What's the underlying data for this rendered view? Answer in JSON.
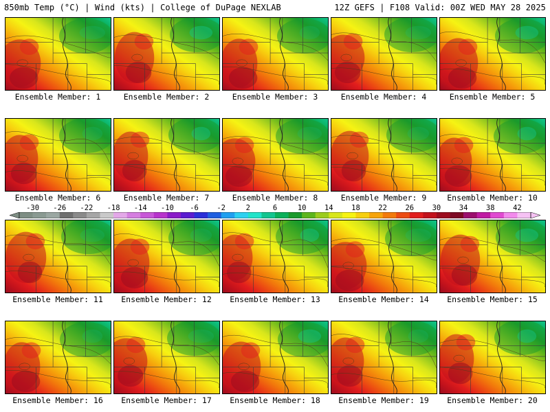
{
  "header": {
    "left": "850mb Temp (°C) | Wind (kts) | College of DuPage NEXLAB",
    "right": "12Z GEFS | F108 Valid: 00Z WED MAY 28 2025"
  },
  "colorbar": {
    "ticks": [
      "-30",
      "-26",
      "-22",
      "-18",
      "-14",
      "-10",
      "-6",
      "-2",
      "2",
      "6",
      "10",
      "14",
      "18",
      "22",
      "26",
      "30",
      "34",
      "38",
      "42"
    ],
    "colors": [
      "#7e8e84",
      "#8a9a92",
      "#9aa7a2",
      "#6f6f6f",
      "#8a8a8a",
      "#a6a6a6",
      "#c9c9c9",
      "#e3a8e8",
      "#d57ee0",
      "#c757d7",
      "#b733cc",
      "#8a1bc8",
      "#5a1bd0",
      "#2a2fd8",
      "#1f5fe0",
      "#1f9ff0",
      "#2cd0f0",
      "#21e3c9",
      "#13c58f",
      "#0bb05a",
      "#1a9a2b",
      "#5db51c",
      "#9ccc1e",
      "#d8e61c",
      "#f6f313",
      "#f7cf0f",
      "#f6a40b",
      "#f27a0b",
      "#ec4b12",
      "#e11d1d",
      "#c2121c",
      "#9c0d1f",
      "#7d0a25",
      "#9b0f6d",
      "#c01aa3",
      "#e04ad1",
      "#f28aec",
      "#f6c2f4"
    ],
    "min": -32,
    "max": 44
  },
  "panels": [
    {
      "label": "Ensemble Member: 1"
    },
    {
      "label": "Ensemble Member: 2"
    },
    {
      "label": "Ensemble Member: 3"
    },
    {
      "label": "Ensemble Member: 4"
    },
    {
      "label": "Ensemble Member: 5"
    },
    {
      "label": "Ensemble Member: 6"
    },
    {
      "label": "Ensemble Member: 7"
    },
    {
      "label": "Ensemble Member: 8"
    },
    {
      "label": "Ensemble Member: 9"
    },
    {
      "label": "Ensemble Member: 10"
    },
    {
      "label": "Ensemble Member: 11"
    },
    {
      "label": "Ensemble Member: 12"
    },
    {
      "label": "Ensemble Member: 13"
    },
    {
      "label": "Ensemble Member: 14"
    },
    {
      "label": "Ensemble Member: 15"
    },
    {
      "label": "Ensemble Member: 16"
    },
    {
      "label": "Ensemble Member: 17"
    },
    {
      "label": "Ensemble Member: 18"
    },
    {
      "label": "Ensemble Member: 19"
    },
    {
      "label": "Ensemble Member: 20"
    }
  ]
}
